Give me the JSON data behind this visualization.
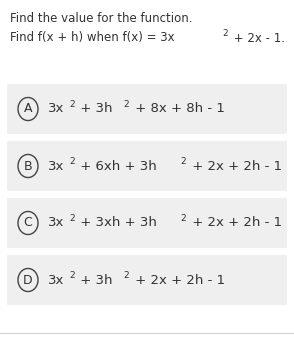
{
  "title_line1": "Find the value for the function.",
  "page_background": "#ffffff",
  "option_bg": "#efefef",
  "circle_color": "#444444",
  "text_color": "#333333",
  "separator_color": "#cccccc",
  "options": [
    {
      "letter": "A",
      "segments": [
        {
          "t": "3x",
          "sup": "2"
        },
        {
          "t": " + 3h",
          "sup": "2"
        },
        {
          "t": " + 8x + 8h - 1",
          "sup": ""
        }
      ]
    },
    {
      "letter": "B",
      "segments": [
        {
          "t": "3x",
          "sup": "2"
        },
        {
          "t": " + 6xh + 3h",
          "sup": "2"
        },
        {
          "t": " + 2x + 2h - 1",
          "sup": ""
        }
      ]
    },
    {
      "letter": "C",
      "segments": [
        {
          "t": "3x",
          "sup": "2"
        },
        {
          "t": " + 3xh + 3h",
          "sup": "2"
        },
        {
          "t": " + 2x + 2h - 1",
          "sup": ""
        }
      ]
    },
    {
      "letter": "D",
      "segments": [
        {
          "t": "3x",
          "sup": "2"
        },
        {
          "t": " + 3h",
          "sup": "2"
        },
        {
          "t": " + 2x + 2h - 1",
          "sup": ""
        }
      ]
    }
  ],
  "font_size_title": 8.5,
  "font_size_option": 9.5,
  "font_size_sup": 6.5,
  "font_size_letter": 9.0
}
